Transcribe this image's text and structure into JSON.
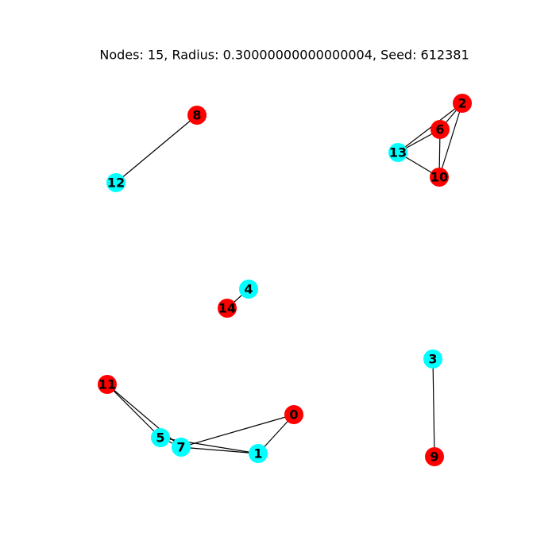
{
  "title": "Nodes: 15, Radius: 0.30000000000000004, Seed: 612381",
  "colors": {
    "red": "#ff0000",
    "cyan": "#00ffff",
    "edge": "#000000",
    "label": "#000000",
    "background": "#ffffff"
  },
  "nodes": [
    {
      "id": "0",
      "label": "0",
      "color": "red"
    },
    {
      "id": "1",
      "label": "1",
      "color": "cyan"
    },
    {
      "id": "2",
      "label": "2",
      "color": "red"
    },
    {
      "id": "3",
      "label": "3",
      "color": "cyan"
    },
    {
      "id": "4",
      "label": "4",
      "color": "cyan"
    },
    {
      "id": "5",
      "label": "5",
      "color": "cyan"
    },
    {
      "id": "6",
      "label": "6",
      "color": "red"
    },
    {
      "id": "7",
      "label": "7",
      "color": "cyan"
    },
    {
      "id": "8",
      "label": "8",
      "color": "red"
    },
    {
      "id": "9",
      "label": "9",
      "color": "red"
    },
    {
      "id": "10",
      "label": "10",
      "color": "red"
    },
    {
      "id": "11",
      "label": "11",
      "color": "red"
    },
    {
      "id": "12",
      "label": "12",
      "color": "cyan"
    },
    {
      "id": "13",
      "label": "13",
      "color": "cyan"
    },
    {
      "id": "14",
      "label": "14",
      "color": "red"
    }
  ],
  "edges": [
    [
      "8",
      "12"
    ],
    [
      "2",
      "6"
    ],
    [
      "2",
      "13"
    ],
    [
      "2",
      "10"
    ],
    [
      "6",
      "13"
    ],
    [
      "6",
      "10"
    ],
    [
      "13",
      "10"
    ],
    [
      "4",
      "14"
    ],
    [
      "3",
      "9"
    ],
    [
      "11",
      "5"
    ],
    [
      "11",
      "7"
    ],
    [
      "5",
      "7"
    ],
    [
      "5",
      "1"
    ],
    [
      "7",
      "0"
    ],
    [
      "7",
      "1"
    ],
    [
      "0",
      "1"
    ]
  ]
}
